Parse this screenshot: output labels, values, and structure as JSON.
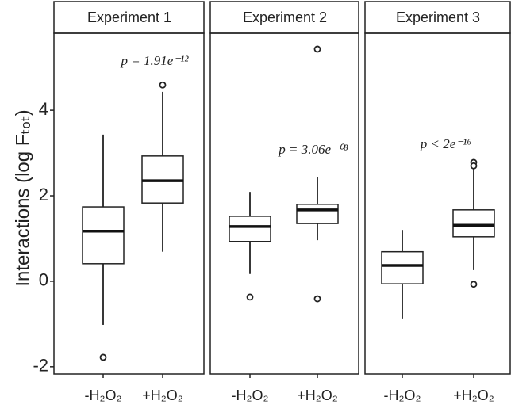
{
  "chart_data": [
    {
      "type": "box",
      "title": "Experiment 1",
      "ylabel": "Interactions (log Fₜₒₜ)",
      "categories": [
        "-H₂O₂",
        "+H₂O₂"
      ],
      "boxes": [
        {
          "min": -1.02,
          "q1": 0.41,
          "median": 1.17,
          "q3": 1.74,
          "max": 3.43,
          "outliers": [
            -1.78
          ]
        },
        {
          "min": 0.69,
          "q1": 1.83,
          "median": 2.35,
          "q3": 2.93,
          "max": 4.43,
          "outliers": [
            4.59
          ]
        }
      ],
      "annotation": "p = 1.91e⁻¹²",
      "ylim": [
        -2.17,
        5.8
      ],
      "yticks": [
        -2,
        0,
        2,
        4
      ]
    },
    {
      "type": "box",
      "title": "Experiment 2",
      "categories": [
        "-H₂O₂",
        "+H₂O₂"
      ],
      "boxes": [
        {
          "min": 0.17,
          "q1": 0.93,
          "median": 1.28,
          "q3": 1.52,
          "max": 2.09,
          "outliers": [
            -0.37
          ]
        },
        {
          "min": 0.96,
          "q1": 1.35,
          "median": 1.67,
          "q3": 1.8,
          "max": 2.43,
          "outliers": [
            5.43,
            -0.41
          ]
        }
      ],
      "annotation": "p = 3.06e⁻⁰⁸",
      "ylim": [
        -2.17,
        5.8
      ]
    },
    {
      "type": "box",
      "title": "Experiment 3",
      "categories": [
        "-H₂O₂",
        "+H₂O₂"
      ],
      "boxes": [
        {
          "min": -0.87,
          "q1": -0.06,
          "median": 0.37,
          "q3": 0.69,
          "max": 1.2,
          "outliers": []
        },
        {
          "min": 0.26,
          "q1": 1.04,
          "median": 1.31,
          "q3": 1.67,
          "max": 2.65,
          "outliers": [
            2.78,
            2.7,
            -0.07
          ]
        }
      ],
      "annotation": "p < 2e⁻¹⁶",
      "ylim": [
        -2.17,
        5.8
      ]
    }
  ]
}
